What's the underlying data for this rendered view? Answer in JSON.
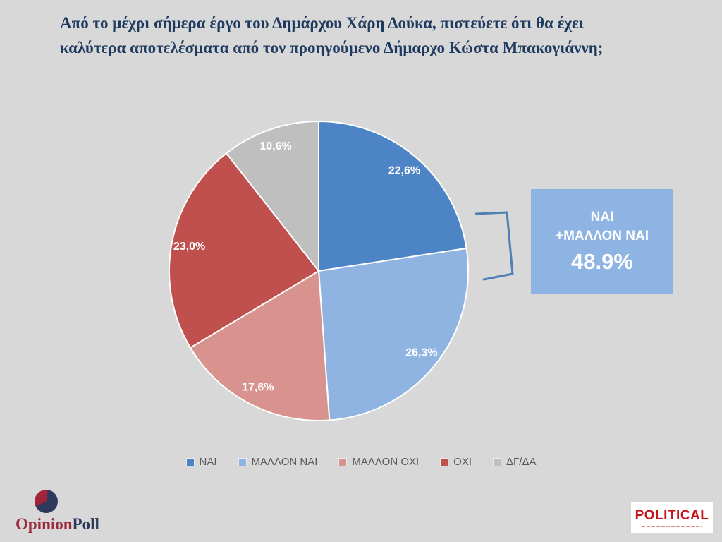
{
  "title": {
    "lines": [
      "Από το μέχρι σήμερα έργο του Δημάρχου Χάρη Δούκα, πιστεύετε ότι θα έχει",
      "καλύτερα αποτελέσματα από τον προηγούμενο Δήμαρχο Κώστα Μπακογιάννη;"
    ],
    "color": "#1F3A5F"
  },
  "chart_data": {
    "type": "pie",
    "categories": [
      "ΝΑΙ",
      "ΜΑΛΛΟΝ ΝΑΙ",
      "ΜΑΛΛΟΝ ΟΧΙ",
      "ΟΧΙ",
      "ΔΓ/ΔΑ"
    ],
    "values": [
      22.6,
      26.3,
      17.6,
      23.0,
      10.6
    ],
    "labels": [
      "22,6%",
      "26,3%",
      "17,6%",
      "23,0%",
      "10,6%"
    ],
    "colors": [
      "#4C84C6",
      "#8FB4E2",
      "#D9938F",
      "#C0504D",
      "#BFBFBF"
    ],
    "start_angle_deg": 0,
    "direction": "clockwise",
    "slice_border_color": "#FFFFFF",
    "legend_position": "bottom",
    "label_color": "#FFFFFF"
  },
  "callout": {
    "line1": "ΝΑΙ",
    "line2": "+ΜΑΛΛΟΝ ΝΑΙ",
    "value": "48.9%",
    "bg": "#8EB4E3",
    "bracket_color": "#4E7FB5"
  },
  "footer": {
    "opinionpoll": {
      "part1": "Opinion",
      "part2": "Poll"
    },
    "political": {
      "label": "POLITICAL"
    }
  }
}
